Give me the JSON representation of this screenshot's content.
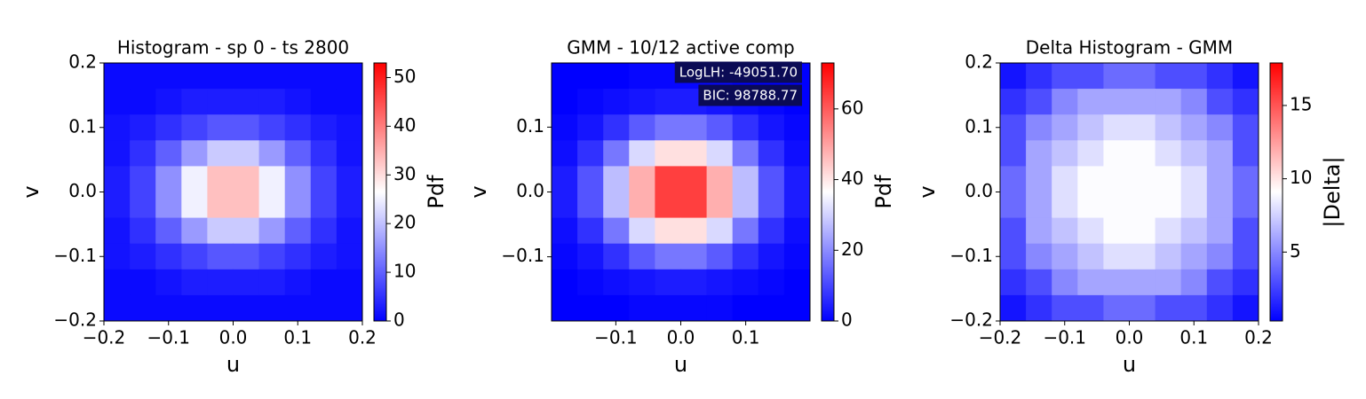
{
  "chart_data": [
    {
      "type": "heatmap",
      "title": "Histogram - sp 0 - ts 2800",
      "xlabel": "u",
      "ylabel": "v",
      "xlim": [
        -0.2,
        0.2
      ],
      "ylim": [
        -0.2,
        0.2
      ],
      "xticks": [
        {
          "value": -0.2,
          "label": "−0.2"
        },
        {
          "value": -0.1,
          "label": "−0.1"
        },
        {
          "value": 0,
          "label": "0.0"
        },
        0.1,
        0.2
      ],
      "yticks": [
        {
          "value": -0.2,
          "label": "−0.2"
        },
        {
          "value": -0.1,
          "label": "−0.1"
        },
        {
          "value": 0,
          "label": "0.0"
        },
        0.1,
        0.2
      ],
      "values": [
        [
          1,
          1,
          1,
          1,
          1,
          1,
          1,
          1,
          1,
          1
        ],
        [
          1,
          1,
          2,
          3,
          3,
          3,
          3,
          2,
          1,
          1
        ],
        [
          2,
          3,
          5,
          7,
          9,
          9,
          7,
          5,
          3,
          2
        ],
        [
          2,
          5,
          10,
          16,
          21,
          21,
          16,
          10,
          5,
          2
        ],
        [
          3,
          7,
          15,
          25,
          33,
          33,
          25,
          15,
          7,
          3
        ],
        [
          3,
          7,
          15,
          25,
          33,
          33,
          25,
          15,
          7,
          3
        ],
        [
          2,
          5,
          10,
          16,
          21,
          21,
          16,
          10,
          5,
          2
        ],
        [
          2,
          3,
          5,
          7,
          9,
          9,
          7,
          5,
          3,
          2
        ],
        [
          1,
          1,
          2,
          3,
          3,
          3,
          3,
          2,
          1,
          1
        ],
        [
          1,
          1,
          1,
          1,
          1,
          1,
          1,
          1,
          1,
          1
        ]
      ],
      "colormap": [
        "#0000ff",
        "#ffffff",
        "#ff0000"
      ],
      "clim": [
        0,
        53
      ],
      "cticks": [
        0,
        10,
        20,
        30,
        40,
        50
      ],
      "clabel": "Pdf"
    },
    {
      "type": "heatmap",
      "title": "GMM - 10/12 active comp",
      "xlabel": "u",
      "ylabel": "v",
      "xlim": [
        -0.199,
        0.199
      ],
      "ylim": [
        -0.199,
        0.199
      ],
      "xticks": [
        {
          "value": -0.1,
          "label": "−0.1"
        },
        {
          "value": 0,
          "label": "0.0"
        },
        0.1
      ],
      "yticks": [
        {
          "value": -0.1,
          "label": "−0.1"
        },
        {
          "value": 0,
          "label": "0.0"
        },
        0.1
      ],
      "values": [
        [
          0,
          0,
          0,
          1,
          1,
          1,
          1,
          0,
          0,
          0
        ],
        [
          0,
          1,
          2,
          3,
          4,
          4,
          3,
          2,
          1,
          0
        ],
        [
          1,
          3,
          7,
          13,
          17,
          17,
          13,
          7,
          3,
          1
        ],
        [
          2,
          7,
          17,
          31,
          41,
          41,
          31,
          17,
          7,
          2
        ],
        [
          4,
          12,
          27,
          48,
          64,
          64,
          48,
          27,
          12,
          4
        ],
        [
          4,
          12,
          27,
          48,
          64,
          64,
          48,
          27,
          12,
          4
        ],
        [
          2,
          7,
          17,
          31,
          41,
          41,
          31,
          17,
          7,
          2
        ],
        [
          1,
          3,
          7,
          13,
          17,
          17,
          13,
          7,
          3,
          1
        ],
        [
          0,
          1,
          2,
          3,
          4,
          4,
          3,
          2,
          1,
          0
        ],
        [
          0,
          0,
          0,
          1,
          1,
          1,
          1,
          0,
          0,
          0
        ]
      ],
      "colormap": [
        "#0000ff",
        "#ffffff",
        "#ff0000"
      ],
      "clim": [
        0,
        73
      ],
      "cticks": [
        0,
        20,
        40,
        60
      ],
      "clabel": "Pdf",
      "annotations": [
        "LogLH: -49051.70",
        "BIC: 98788.77"
      ]
    },
    {
      "type": "heatmap",
      "title": "Delta Histogram - GMM",
      "xlabel": "u",
      "ylabel": "v",
      "xlim": [
        -0.2,
        0.2
      ],
      "ylim": [
        -0.2,
        0.2
      ],
      "xticks": [
        {
          "value": -0.2,
          "label": "−0.2"
        },
        {
          "value": -0.1,
          "label": "−0.1"
        },
        {
          "value": 0,
          "label": "0.0"
        },
        0.1,
        0.2
      ],
      "yticks": [
        {
          "value": -0.2,
          "label": "−0.2"
        },
        {
          "value": -0.1,
          "label": "−0.1"
        },
        {
          "value": 0,
          "label": "0.0"
        },
        0.1,
        0.2
      ],
      "values": [
        [
          1,
          2,
          3,
          3,
          4,
          4,
          3,
          3,
          2,
          1
        ],
        [
          2,
          3,
          5,
          6,
          6,
          6,
          6,
          5,
          3,
          2
        ],
        [
          3,
          5,
          6,
          7,
          8,
          8,
          7,
          6,
          5,
          3
        ],
        [
          3,
          6,
          7,
          8,
          9,
          9,
          8,
          7,
          6,
          3
        ],
        [
          4,
          6,
          8,
          9,
          9,
          9,
          9,
          8,
          6,
          4
        ],
        [
          4,
          6,
          8,
          9,
          9,
          9,
          9,
          8,
          6,
          4
        ],
        [
          3,
          6,
          7,
          8,
          9,
          9,
          8,
          7,
          6,
          3
        ],
        [
          3,
          5,
          6,
          7,
          8,
          8,
          7,
          6,
          5,
          3
        ],
        [
          2,
          3,
          5,
          6,
          6,
          6,
          6,
          5,
          3,
          2
        ],
        [
          1,
          2,
          3,
          3,
          4,
          4,
          3,
          3,
          2,
          1
        ]
      ],
      "colormap": [
        "#0000ff",
        "#ffffff",
        "#ff0000"
      ],
      "clim": [
        0.3,
        17.9
      ],
      "cticks": [
        5,
        10,
        15
      ],
      "clabel": "|Delta|"
    }
  ]
}
